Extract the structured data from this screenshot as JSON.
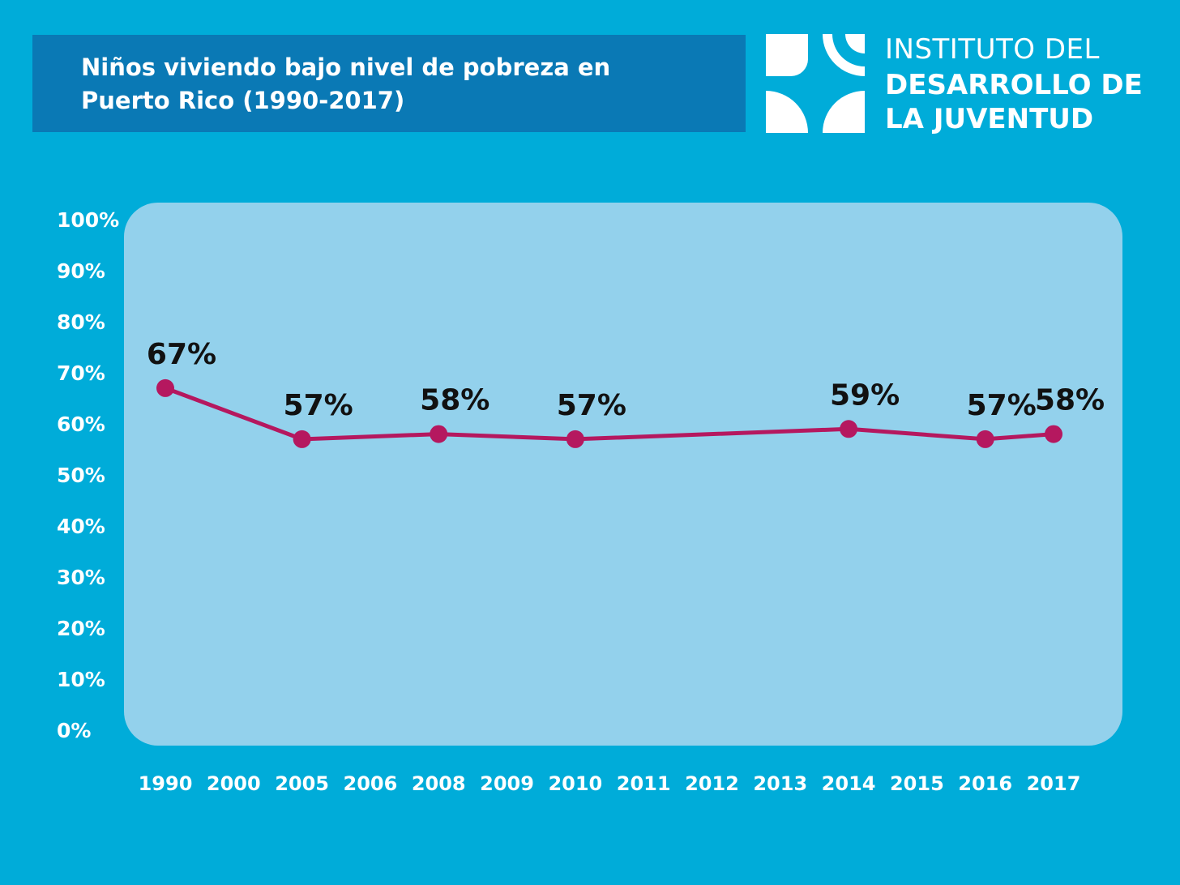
{
  "title": "Niños viviendo bajo nivel de pobreza en Puerto Rico (1990-2017)",
  "logo": {
    "line1": "INSTITUTO DEL",
    "line2": "DESARROLLO DE",
    "line3": "LA JUVENTUD"
  },
  "colors": {
    "background": "#00acd9",
    "title_box": "#0a79b5",
    "plot_area": "#93d1ec",
    "line": "#b5185f",
    "data_label": "#111111",
    "tick_text": "#ffffff"
  },
  "chart_data": {
    "type": "line",
    "title": "Niños viviendo bajo nivel de pobreza en Puerto Rico (1990-2017)",
    "xlabel": "",
    "ylabel": "",
    "categories": [
      "1990",
      "2000",
      "2005",
      "2006",
      "2008",
      "2009",
      "2010",
      "2011",
      "2012",
      "2013",
      "2014",
      "2015",
      "2016",
      "2017"
    ],
    "yticks": [
      "0%",
      "10%",
      "20%",
      "30%",
      "40%",
      "50%",
      "60%",
      "70%",
      "80%",
      "90%",
      "100%"
    ],
    "ylim": [
      0,
      100
    ],
    "grid": false,
    "legend": "none",
    "series": [
      {
        "points": [
          {
            "x": "1990",
            "y": 67,
            "label": "67%"
          },
          {
            "x": "2005",
            "y": 57,
            "label": "57%"
          },
          {
            "x": "2008",
            "y": 58,
            "label": "58%"
          },
          {
            "x": "2010",
            "y": 57,
            "label": "57%"
          },
          {
            "x": "2014",
            "y": 59,
            "label": "59%"
          },
          {
            "x": "2016",
            "y": 57,
            "label": "57%"
          },
          {
            "x": "2017",
            "y": 58,
            "label": "58%"
          }
        ]
      }
    ]
  }
}
